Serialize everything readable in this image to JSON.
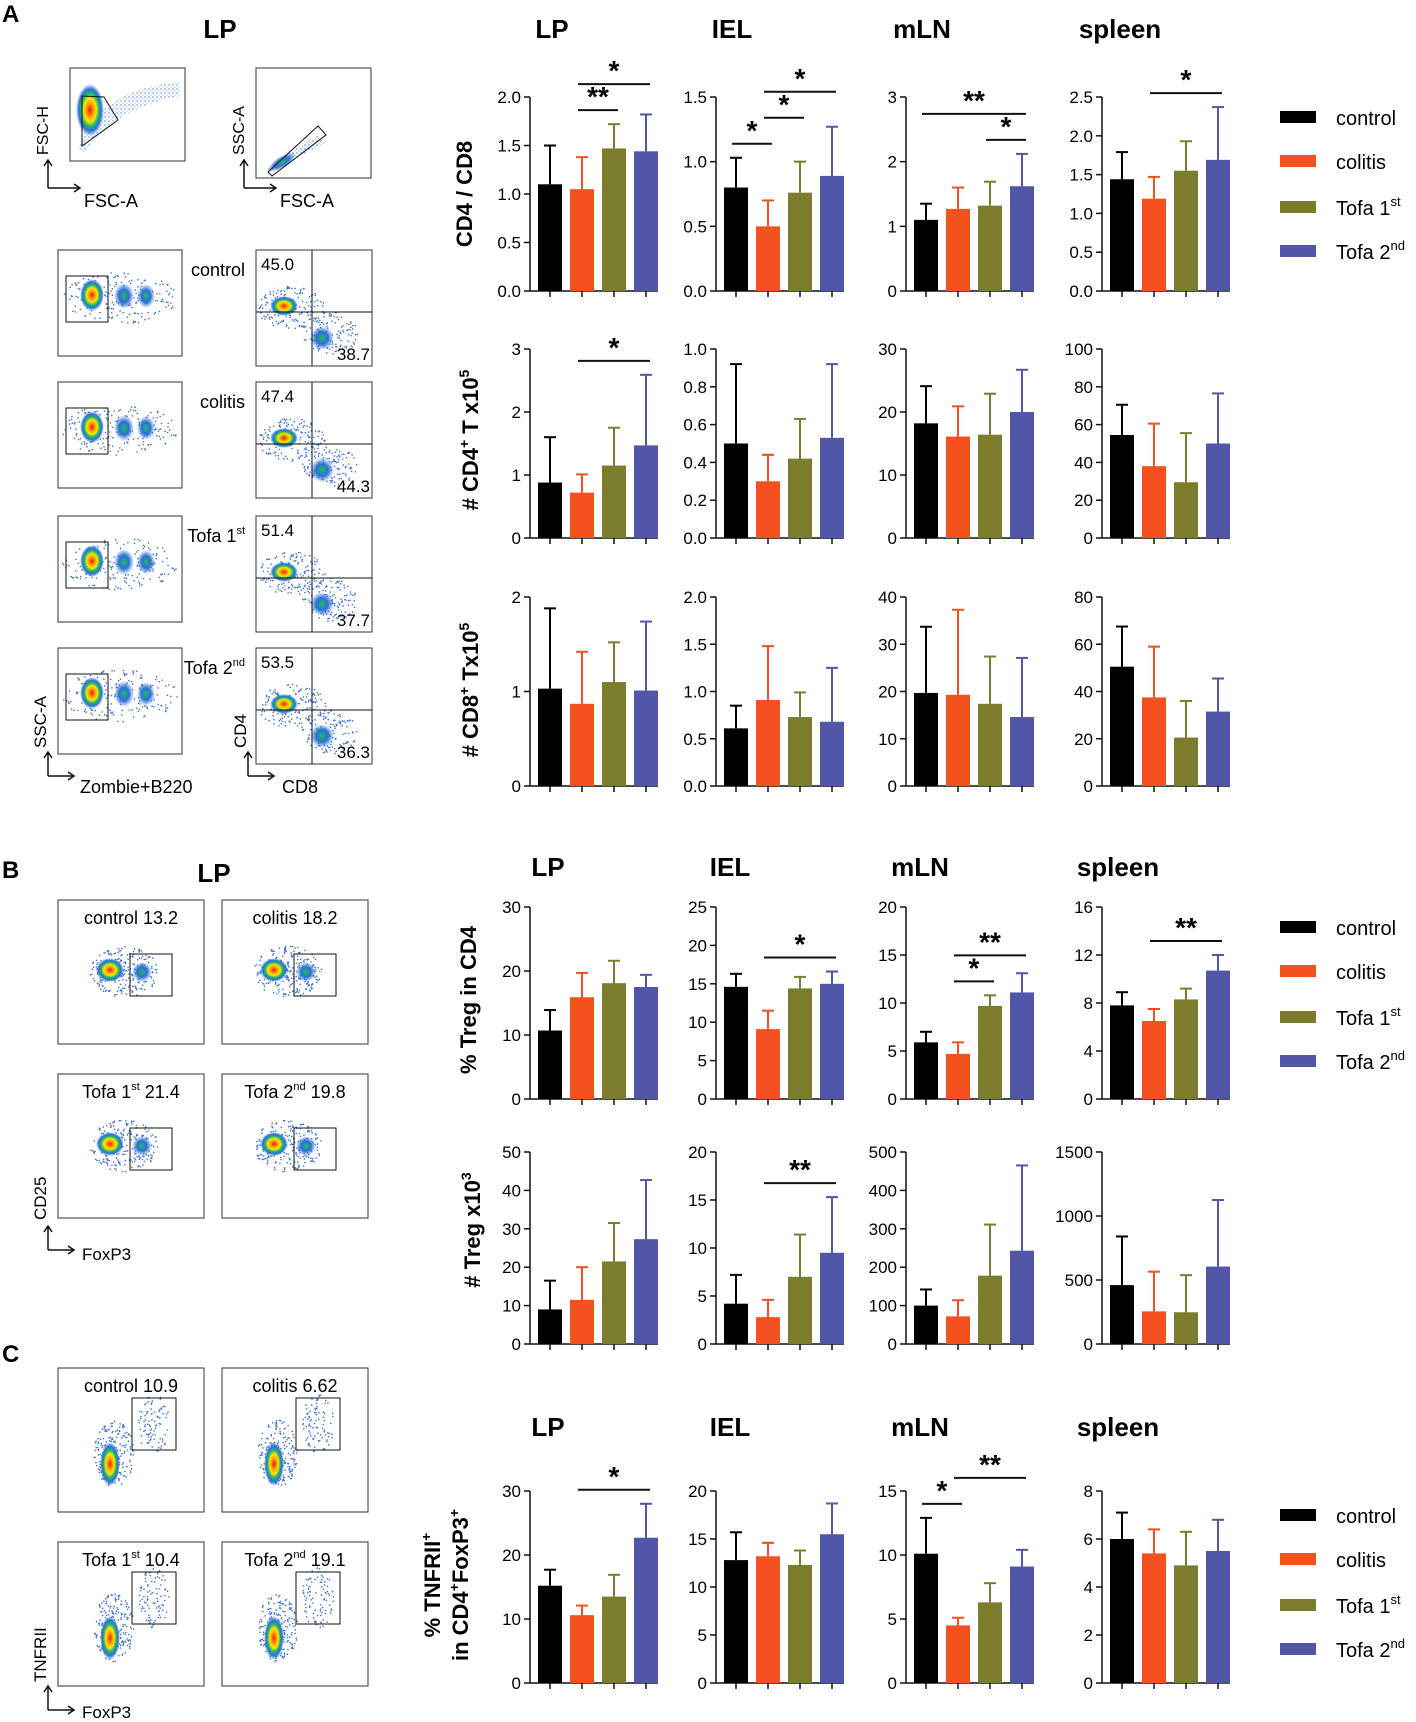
{
  "colors": {
    "control": "#000000",
    "colitis": "#f4511e",
    "tofa1": "#7b7d2d",
    "tofa2": "#5156a8"
  },
  "panel_labels": [
    "A",
    "B",
    "C"
  ],
  "flow": {
    "lp_title_a": "LP",
    "lp_title_b": "LP",
    "scatter_axes": {
      "fsc_h": "FSC-H",
      "fsc_a": "FSC-A",
      "ssc_a": "SSC-A",
      "fsc_a2": "FSC-A"
    },
    "zombie_axis": {
      "y": "SSC-A",
      "x": "Zombie+B220"
    },
    "cd_axis": {
      "y": "CD4",
      "x": "CD8"
    },
    "a_groups": [
      {
        "label": "control",
        "label_sup": "",
        "top": "45.0",
        "bottom": "38.7"
      },
      {
        "label": "colitis",
        "label_sup": "",
        "top": "47.4",
        "bottom": "44.3"
      },
      {
        "label": "Tofa 1",
        "label_sup": "st",
        "top": "51.4",
        "bottom": "37.7"
      },
      {
        "label": "Tofa 2",
        "label_sup": "nd",
        "top": "53.5",
        "bottom": "36.3"
      }
    ],
    "b_plots": [
      {
        "label": "control",
        "sup": "",
        "value": "13.2"
      },
      {
        "label": "colitis",
        "sup": "",
        "value": "18.2"
      },
      {
        "label": "Tofa 1",
        "sup": "st",
        "value": "21.4"
      },
      {
        "label": "Tofa 2",
        "sup": "nd",
        "value": "19.8"
      }
    ],
    "b_axes": {
      "y": "CD25",
      "x": "FoxP3"
    },
    "c_plots": [
      {
        "label": "control",
        "sup": "",
        "value": "10.9"
      },
      {
        "label": "colitis",
        "sup": "",
        "value": "6.62"
      },
      {
        "label": "Tofa 1",
        "sup": "st",
        "value": "10.4"
      },
      {
        "label": "Tofa 2",
        "sup": "nd",
        "value": "19.1"
      }
    ],
    "c_axes": {
      "y": "TNFRII",
      "x": "FoxP3"
    }
  },
  "legend": {
    "items": [
      {
        "label": "control",
        "sup": ""
      },
      {
        "label": "colitis",
        "sup": ""
      },
      {
        "label": "Tofa 1",
        "sup": "st"
      },
      {
        "label": "Tofa 2",
        "sup": "nd"
      }
    ]
  },
  "row_labels": {
    "r1": "CD4 / CD8",
    "r2_main": "# CD4",
    "r2_sup": "+",
    "r2_tail": " T x10",
    "r2_exp": "5",
    "r3_main": "# CD8",
    "r3_sup": "+",
    "r3_tail": " Tx10",
    "r3_exp": "5",
    "r4_pre": "% Treg in ",
    "r4_bold": "CD4",
    "r5_main": "# Treg x10",
    "r5_exp": "3",
    "r6_line1": "% TNFRII",
    "r6_sup1": "+",
    "r6_line2": "in CD4",
    "r6_sup2": "+",
    "r6_line2b": "FoxP3",
    "r6_sup3": "+"
  },
  "column_titles": {
    "a": [
      "LP",
      "IEL",
      "mLN",
      "spleen"
    ],
    "b": [
      "LP",
      "IEL",
      "mLN",
      "spleen"
    ],
    "c": [
      "LP",
      "IEL",
      "mLN",
      "spleen"
    ]
  },
  "chart_data": [
    {
      "id": "r1c1",
      "type": "bar",
      "row": "CD4 / CD8",
      "tissue": "LP",
      "categories": [
        "control",
        "colitis",
        "Tofa 1st",
        "Tofa 2nd"
      ],
      "values": [
        1.1,
        1.05,
        1.47,
        1.44
      ],
      "errors": [
        0.4,
        0.33,
        0.25,
        0.38
      ],
      "ylim": [
        0,
        2
      ],
      "ticks": [
        "0.0",
        "0.5",
        "1.0",
        "1.5",
        "2.0"
      ],
      "sig": [
        {
          "a": 1,
          "b": 2,
          "label": "**"
        },
        {
          "a": 1,
          "b": 3,
          "label": "*"
        }
      ]
    },
    {
      "id": "r1c2",
      "type": "bar",
      "row": "CD4 / CD8",
      "tissue": "IEL",
      "categories": [
        "control",
        "colitis",
        "Tofa 1st",
        "Tofa 2nd"
      ],
      "values": [
        0.8,
        0.5,
        0.76,
        0.89
      ],
      "errors": [
        0.23,
        0.2,
        0.24,
        0.38
      ],
      "ylim": [
        0,
        1.5
      ],
      "ticks": [
        "0.0",
        "0.5",
        "1.0",
        "1.5"
      ],
      "sig": [
        {
          "a": 0,
          "b": 1,
          "label": "*"
        },
        {
          "a": 1,
          "b": 2,
          "label": "*"
        },
        {
          "a": 1,
          "b": 3,
          "label": "*"
        }
      ]
    },
    {
      "id": "r1c3",
      "type": "bar",
      "row": "CD4 / CD8",
      "tissue": "mLN",
      "categories": [
        "control",
        "colitis",
        "Tofa 1st",
        "Tofa 2nd"
      ],
      "values": [
        1.1,
        1.27,
        1.32,
        1.62
      ],
      "errors": [
        0.25,
        0.33,
        0.37,
        0.5
      ],
      "ylim": [
        0,
        3
      ],
      "ticks": [
        "0",
        "1",
        "2",
        "3"
      ],
      "sig": [
        {
          "a": 0,
          "b": 3,
          "label": "**"
        },
        {
          "a": 2,
          "b": 3,
          "label": "*"
        }
      ]
    },
    {
      "id": "r1c4",
      "type": "bar",
      "row": "CD4 / CD8",
      "tissue": "spleen",
      "categories": [
        "control",
        "colitis",
        "Tofa 1st",
        "Tofa 2nd"
      ],
      "values": [
        1.44,
        1.19,
        1.55,
        1.69
      ],
      "errors": [
        0.35,
        0.28,
        0.38,
        0.68
      ],
      "ylim": [
        0,
        2.5
      ],
      "ticks": [
        "0.0",
        "0.5",
        "1.0",
        "1.5",
        "2.0",
        "2.5"
      ],
      "sig": [
        {
          "a": 1,
          "b": 3,
          "label": "*"
        }
      ]
    },
    {
      "id": "r2c1",
      "type": "bar",
      "row": "# CD4+ T x10^5",
      "tissue": "LP",
      "categories": [
        "control",
        "colitis",
        "Tofa 1st",
        "Tofa 2nd"
      ],
      "values": [
        0.88,
        0.72,
        1.15,
        1.47
      ],
      "errors": [
        0.72,
        0.29,
        0.6,
        1.12
      ],
      "ylim": [
        0,
        3
      ],
      "ticks": [
        "0",
        "1",
        "2",
        "3"
      ],
      "sig": [
        {
          "a": 1,
          "b": 3,
          "label": "*"
        }
      ]
    },
    {
      "id": "r2c2",
      "type": "bar",
      "row": "# CD4+ T x10^5",
      "tissue": "IEL",
      "categories": [
        "control",
        "colitis",
        "Tofa 1st",
        "Tofa 2nd"
      ],
      "values": [
        0.5,
        0.3,
        0.42,
        0.53
      ],
      "errors": [
        0.42,
        0.14,
        0.21,
        0.39
      ],
      "ylim": [
        0,
        1
      ],
      "ticks": [
        "0.0",
        "0.2",
        "0.4",
        "0.6",
        "0.8",
        "1.0"
      ],
      "sig": []
    },
    {
      "id": "r2c3",
      "type": "bar",
      "row": "# CD4+ T x10^5",
      "tissue": "mLN",
      "categories": [
        "control",
        "colitis",
        "Tofa 1st",
        "Tofa 2nd"
      ],
      "values": [
        18.2,
        16.1,
        16.4,
        20
      ],
      "errors": [
        5.9,
        4.8,
        6.5,
        6.7
      ],
      "ylim": [
        0,
        30
      ],
      "ticks": [
        "0",
        "10",
        "20",
        "30"
      ],
      "sig": []
    },
    {
      "id": "r2c4",
      "type": "bar",
      "row": "# CD4+ T x10^5",
      "tissue": "spleen",
      "categories": [
        "control",
        "colitis",
        "Tofa 1st",
        "Tofa 2nd"
      ],
      "values": [
        54.5,
        38,
        29.5,
        50
      ],
      "errors": [
        16,
        22.5,
        26,
        26.5
      ],
      "ylim": [
        0,
        100
      ],
      "ticks": [
        "0",
        "20",
        "40",
        "60",
        "80",
        "100"
      ],
      "sig": []
    },
    {
      "id": "r3c1",
      "type": "bar",
      "row": "# CD8+ Tx10^5",
      "tissue": "LP",
      "categories": [
        "control",
        "colitis",
        "Tofa 1st",
        "Tofa 2nd"
      ],
      "values": [
        1.03,
        0.87,
        1.1,
        1.01
      ],
      "errors": [
        0.85,
        0.55,
        0.42,
        0.73
      ],
      "ylim": [
        0,
        2
      ],
      "ticks": [
        "0",
        "1",
        "2"
      ],
      "sig": []
    },
    {
      "id": "r3c2",
      "type": "bar",
      "row": "# CD8+ Tx10^5",
      "tissue": "IEL",
      "categories": [
        "control",
        "colitis",
        "Tofa 1st",
        "Tofa 2nd"
      ],
      "values": [
        0.61,
        0.91,
        0.73,
        0.68
      ],
      "errors": [
        0.24,
        0.57,
        0.26,
        0.57
      ],
      "ylim": [
        0,
        2
      ],
      "ticks": [
        "0.0",
        "0.5",
        "1.0",
        "1.5",
        "2.0"
      ],
      "sig": []
    },
    {
      "id": "r3c3",
      "type": "bar",
      "row": "# CD8+ Tx10^5",
      "tissue": "mLN",
      "categories": [
        "control",
        "colitis",
        "Tofa 1st",
        "Tofa 2nd"
      ],
      "values": [
        19.7,
        19.3,
        17.4,
        14.6
      ],
      "errors": [
        14,
        18,
        10,
        12.5
      ],
      "ylim": [
        0,
        40
      ],
      "ticks": [
        "0",
        "10",
        "20",
        "30",
        "40"
      ],
      "sig": []
    },
    {
      "id": "r3c4",
      "type": "bar",
      "row": "# CD8+ Tx10^5",
      "tissue": "spleen",
      "categories": [
        "control",
        "colitis",
        "Tofa 1st",
        "Tofa 2nd"
      ],
      "values": [
        50.5,
        37.5,
        20.5,
        31.5
      ],
      "errors": [
        17,
        21.5,
        15.5,
        14
      ],
      "ylim": [
        0,
        80
      ],
      "ticks": [
        "0",
        "20",
        "40",
        "60",
        "80"
      ],
      "sig": []
    },
    {
      "id": "r4c1",
      "type": "bar",
      "row": "% Treg in CD4",
      "tissue": "LP",
      "categories": [
        "control",
        "colitis",
        "Tofa 1st",
        "Tofa 2nd"
      ],
      "values": [
        10.7,
        15.9,
        18.1,
        17.5
      ],
      "errors": [
        3.2,
        3.8,
        3.5,
        1.9
      ],
      "ylim": [
        0,
        30
      ],
      "ticks": [
        "0",
        "10",
        "20",
        "30"
      ],
      "sig": []
    },
    {
      "id": "r4c2",
      "type": "bar",
      "row": "% Treg in CD4",
      "tissue": "IEL",
      "categories": [
        "control",
        "colitis",
        "Tofa 1st",
        "Tofa 2nd"
      ],
      "values": [
        14.6,
        9.1,
        14.4,
        15
      ],
      "errors": [
        1.7,
        2.4,
        1.5,
        1.6
      ],
      "ylim": [
        0,
        25
      ],
      "ticks": [
        "0",
        "5",
        "10",
        "15",
        "20",
        "25"
      ],
      "sig": [
        {
          "a": 1,
          "b": 3,
          "label": "*"
        }
      ]
    },
    {
      "id": "r4c3",
      "type": "bar",
      "row": "% Treg in CD4",
      "tissue": "mLN",
      "categories": [
        "control",
        "colitis",
        "Tofa 1st",
        "Tofa 2nd"
      ],
      "values": [
        5.9,
        4.7,
        9.7,
        11.1
      ],
      "errors": [
        1.1,
        1.2,
        1.1,
        2
      ],
      "ylim": [
        0,
        20
      ],
      "ticks": [
        "0",
        "5",
        "10",
        "15",
        "20"
      ],
      "sig": [
        {
          "a": 1,
          "b": 2,
          "label": "*"
        },
        {
          "a": 1,
          "b": 3,
          "label": "**"
        }
      ]
    },
    {
      "id": "r4c4",
      "type": "bar",
      "row": "% Treg in CD4",
      "tissue": "spleen",
      "categories": [
        "control",
        "colitis",
        "Tofa 1st",
        "Tofa 2nd"
      ],
      "values": [
        7.8,
        6.5,
        8.3,
        10.7
      ],
      "errors": [
        1.1,
        1,
        0.9,
        1.3
      ],
      "ylim": [
        0,
        16
      ],
      "ticks": [
        "0",
        "4",
        "8",
        "12",
        "16"
      ],
      "sig": [
        {
          "a": 1,
          "b": 3,
          "label": "**"
        }
      ]
    },
    {
      "id": "r5c1",
      "type": "bar",
      "row": "# Treg x10^3",
      "tissue": "LP",
      "categories": [
        "control",
        "colitis",
        "Tofa 1st",
        "Tofa 2nd"
      ],
      "values": [
        9,
        11.5,
        21.5,
        27.3
      ],
      "errors": [
        7.5,
        8.5,
        10,
        15.4
      ],
      "ylim": [
        0,
        50
      ],
      "ticks": [
        "0",
        "10",
        "20",
        "30",
        "40",
        "50"
      ],
      "sig": []
    },
    {
      "id": "r5c2",
      "type": "bar",
      "row": "# Treg x10^3",
      "tissue": "IEL",
      "categories": [
        "control",
        "colitis",
        "Tofa 1st",
        "Tofa 2nd"
      ],
      "values": [
        4.2,
        2.8,
        7,
        9.5
      ],
      "errors": [
        3,
        1.8,
        4.4,
        5.8
      ],
      "ylim": [
        0,
        20
      ],
      "ticks": [
        "0",
        "5",
        "10",
        "15",
        "20"
      ],
      "sig": [
        {
          "a": 1,
          "b": 3,
          "label": "**"
        }
      ]
    },
    {
      "id": "r5c3",
      "type": "bar",
      "row": "# Treg x10^3",
      "tissue": "mLN",
      "categories": [
        "control",
        "colitis",
        "Tofa 1st",
        "Tofa 2nd"
      ],
      "values": [
        100,
        72,
        178,
        243
      ],
      "errors": [
        42,
        42,
        133,
        222
      ],
      "ylim": [
        0,
        500
      ],
      "ticks": [
        "0",
        "100",
        "200",
        "300",
        "400",
        "500"
      ],
      "sig": []
    },
    {
      "id": "r5c4",
      "type": "bar",
      "row": "# Treg x10^3",
      "tissue": "spleen",
      "categories": [
        "control",
        "colitis",
        "Tofa 1st",
        "Tofa 2nd"
      ],
      "values": [
        460,
        255,
        248,
        605
      ],
      "errors": [
        380,
        310,
        290,
        520
      ],
      "ylim": [
        0,
        1500
      ],
      "ticks": [
        "0",
        "500",
        "1000",
        "1500"
      ],
      "sig": []
    },
    {
      "id": "r6c1",
      "type": "bar",
      "row": "% TNFRII+ in CD4+FoxP3+",
      "tissue": "LP",
      "categories": [
        "control",
        "colitis",
        "Tofa 1st",
        "Tofa 2nd"
      ],
      "values": [
        15.2,
        10.6,
        13.5,
        22.7
      ],
      "errors": [
        2.5,
        1.5,
        3.4,
        5.3
      ],
      "ylim": [
        0,
        30
      ],
      "ticks": [
        "0",
        "10",
        "20",
        "30"
      ],
      "sig": [
        {
          "a": 1,
          "b": 3,
          "label": "*"
        }
      ]
    },
    {
      "id": "r6c2",
      "type": "bar",
      "row": "% TNFRII+ in CD4+FoxP3+",
      "tissue": "IEL",
      "categories": [
        "control",
        "colitis",
        "Tofa 1st",
        "Tofa 2nd"
      ],
      "values": [
        12.8,
        13.2,
        12.3,
        15.5
      ],
      "errors": [
        2.9,
        1.4,
        1.5,
        3.2
      ],
      "ylim": [
        0,
        20
      ],
      "ticks": [
        "0",
        "5",
        "10",
        "15",
        "20"
      ],
      "sig": []
    },
    {
      "id": "r6c3",
      "type": "bar",
      "row": "% TNFRII+ in CD4+FoxP3+",
      "tissue": "mLN",
      "categories": [
        "control",
        "colitis",
        "Tofa 1st",
        "Tofa 2nd"
      ],
      "values": [
        10.1,
        4.5,
        6.3,
        9.1
      ],
      "errors": [
        2.8,
        0.6,
        1.5,
        1.3
      ],
      "ylim": [
        0,
        15
      ],
      "ticks": [
        "0",
        "5",
        "10",
        "15"
      ],
      "sig": [
        {
          "a": 0,
          "b": 1,
          "label": "*"
        },
        {
          "a": 1,
          "b": 3,
          "label": "**"
        }
      ]
    },
    {
      "id": "r6c4",
      "type": "bar",
      "row": "% TNFRII+ in CD4+FoxP3+",
      "tissue": "spleen",
      "categories": [
        "control",
        "colitis",
        "Tofa 1st",
        "Tofa 2nd"
      ],
      "values": [
        6,
        5.4,
        4.9,
        5.5
      ],
      "errors": [
        1.1,
        1,
        1.4,
        1.3
      ],
      "ylim": [
        0,
        8
      ],
      "ticks": [
        "0",
        "2",
        "4",
        "6",
        "8"
      ],
      "sig": []
    }
  ]
}
